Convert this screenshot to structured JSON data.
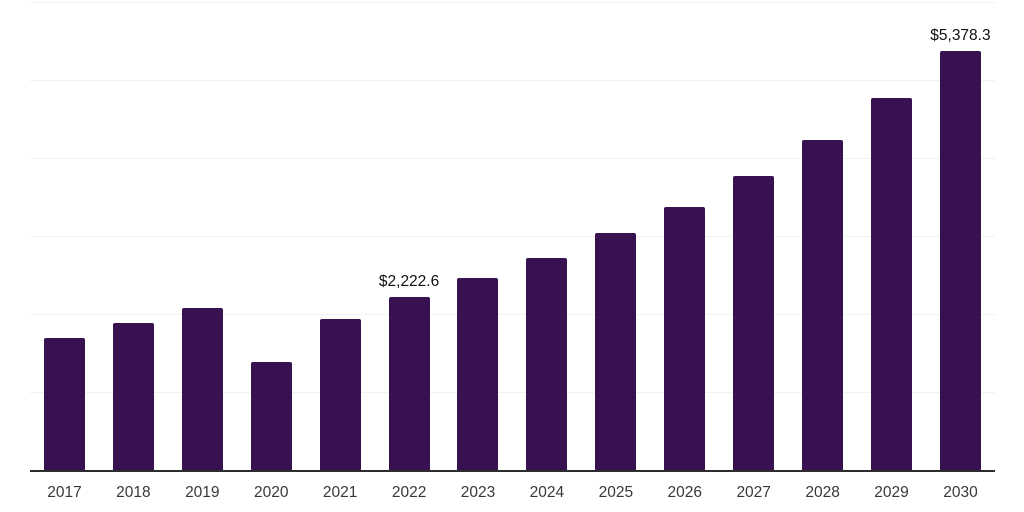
{
  "chart_data": {
    "type": "bar",
    "title": "",
    "xlabel": "",
    "ylabel": "",
    "categories": [
      "2017",
      "2018",
      "2019",
      "2020",
      "2021",
      "2022",
      "2023",
      "2024",
      "2025",
      "2026",
      "2027",
      "2028",
      "2029",
      "2030"
    ],
    "values": [
      1690,
      1885,
      2075,
      1385,
      1935,
      2222.6,
      2460,
      2715,
      3040,
      3370,
      3770,
      4230,
      4770,
      5378.3
    ],
    "data_labels": [
      "",
      "",
      "",
      "",
      "",
      "$2,222.6",
      "",
      "",
      "",
      "",
      "",
      "",
      "",
      "$5,378.3"
    ],
    "ylim": [
      0,
      6000
    ],
    "gridline_step": 1000,
    "grid": "horizontal light gray lines, no y-axis tick labels",
    "legend": "none",
    "bar_color": "#371150",
    "grid_color": "#f1f1f1",
    "axis_color": "#2d2d2d",
    "tick_label_color": "#383838",
    "data_label_color": "#111111"
  }
}
